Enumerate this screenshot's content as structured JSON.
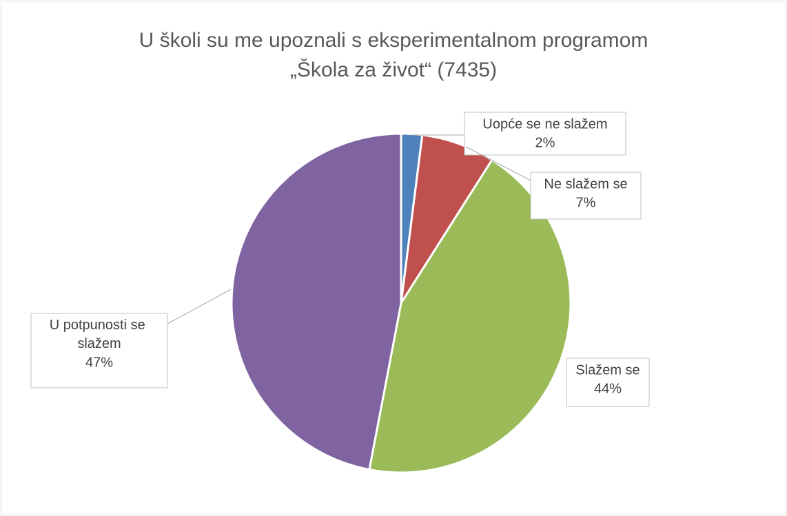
{
  "chart_data": {
    "type": "pie",
    "title": [
      "U školi su me upoznali s eksperimentalnom programom",
      "„Škola za život“ (7435)"
    ],
    "categories": [
      "Uopće se ne slažem",
      "Ne slažem se",
      "Slažem se",
      "U potpunosti se slažem"
    ],
    "values": [
      2,
      7,
      44,
      47
    ],
    "value_labels": [
      "2%",
      "7%",
      "44%",
      "47%"
    ],
    "colors": [
      "#4f81bd",
      "#c0504d",
      "#9bbb59",
      "#8064a2"
    ]
  }
}
